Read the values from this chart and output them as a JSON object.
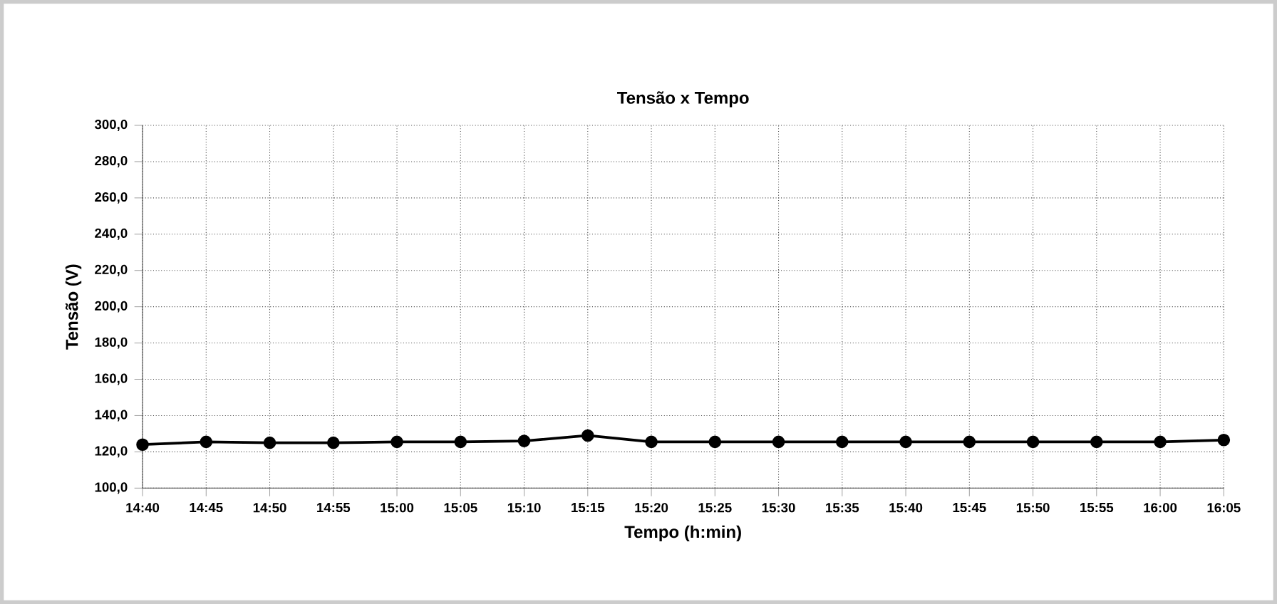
{
  "chart_data": {
    "type": "line",
    "title": "Tensão x Tempo",
    "xlabel": "Tempo (h:min)",
    "ylabel": "Tensão (V)",
    "categories": [
      "14:40",
      "14:45",
      "14:50",
      "14:55",
      "15:00",
      "15:05",
      "15:10",
      "15:15",
      "15:20",
      "15:25",
      "15:30",
      "15:35",
      "15:40",
      "15:45",
      "15:50",
      "15:55",
      "16:00",
      "16:05"
    ],
    "series": [
      {
        "color": "#000000",
        "values": [
          124,
          125.5,
          125,
          125,
          125.5,
          125.5,
          126,
          129,
          125.5,
          125.5,
          125.5,
          125.5,
          125.5,
          125.5,
          125.5,
          125.5,
          125.5,
          126.5
        ]
      }
    ],
    "ylim": [
      100,
      300
    ],
    "yticks": [
      {
        "value": 100,
        "label": "100,0"
      },
      {
        "value": 120,
        "label": "120,0"
      },
      {
        "value": 140,
        "label": "140,0"
      },
      {
        "value": 160,
        "label": "160,0"
      },
      {
        "value": 180,
        "label": "180,0"
      },
      {
        "value": 200,
        "label": "200,0"
      },
      {
        "value": 220,
        "label": "220,0"
      },
      {
        "value": 240,
        "label": "240,0"
      },
      {
        "value": 260,
        "label": "260,0"
      },
      {
        "value": 280,
        "label": "280,0"
      },
      {
        "value": 300,
        "label": "300,0"
      }
    ],
    "grid": true,
    "marker": "circle",
    "line_style": "solid"
  }
}
